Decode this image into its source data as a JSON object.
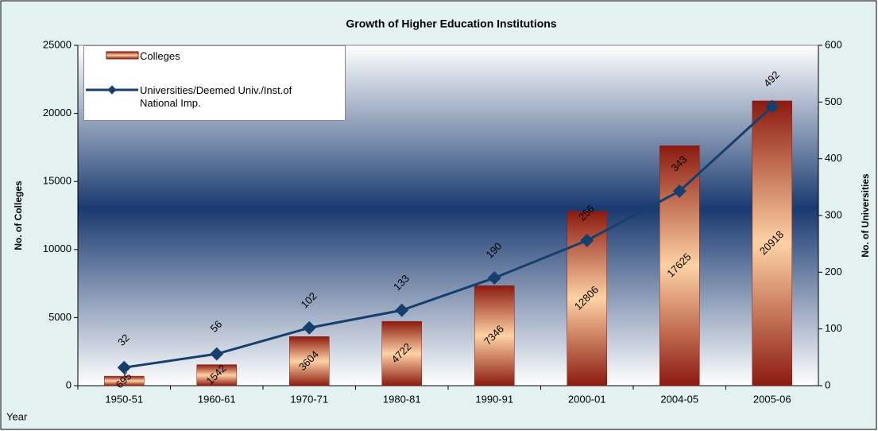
{
  "chart_data": {
    "type": "bar",
    "title": "Growth of Higher Education Institutions",
    "x_label": "Year",
    "y_label": "No. of Colleges",
    "y2_label": "No. of Universities",
    "categories": [
      "1950-51",
      "1960-61",
      "1970-71",
      "1980-81",
      "1990-91",
      "2000-01",
      "2004-05",
      "2005-06"
    ],
    "series": [
      {
        "name": "Colleges",
        "type": "bar",
        "color": "#8b1a10",
        "values": [
          695,
          1542,
          3604,
          4722,
          7346,
          12806,
          17625,
          20918
        ]
      },
      {
        "name": "Universities/Deemed Univ./Inst.of National Imp.",
        "type": "line",
        "axis": "y2",
        "color": "#173f6e",
        "values": [
          32,
          56,
          102,
          133,
          190,
          256,
          343,
          492
        ]
      }
    ],
    "ylim": [
      0,
      25000
    ],
    "yticks": [
      0,
      5000,
      10000,
      15000,
      20000,
      25000
    ],
    "y2lim": [
      0,
      600
    ],
    "y2ticks": [
      0,
      100,
      200,
      300,
      400,
      500,
      600
    ],
    "legend": "top-left"
  }
}
